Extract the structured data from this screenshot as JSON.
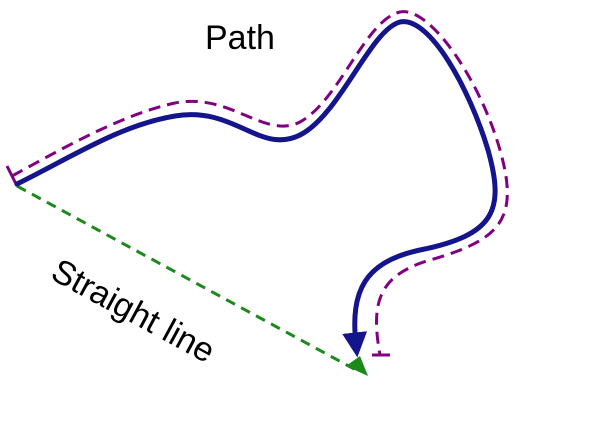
{
  "labels": {
    "path": "Path",
    "straight_line": "Straight line"
  },
  "colors": {
    "path": "#14148c",
    "distance": "#800080",
    "straight": "#1a8a1a",
    "background": "#ffffff"
  }
}
